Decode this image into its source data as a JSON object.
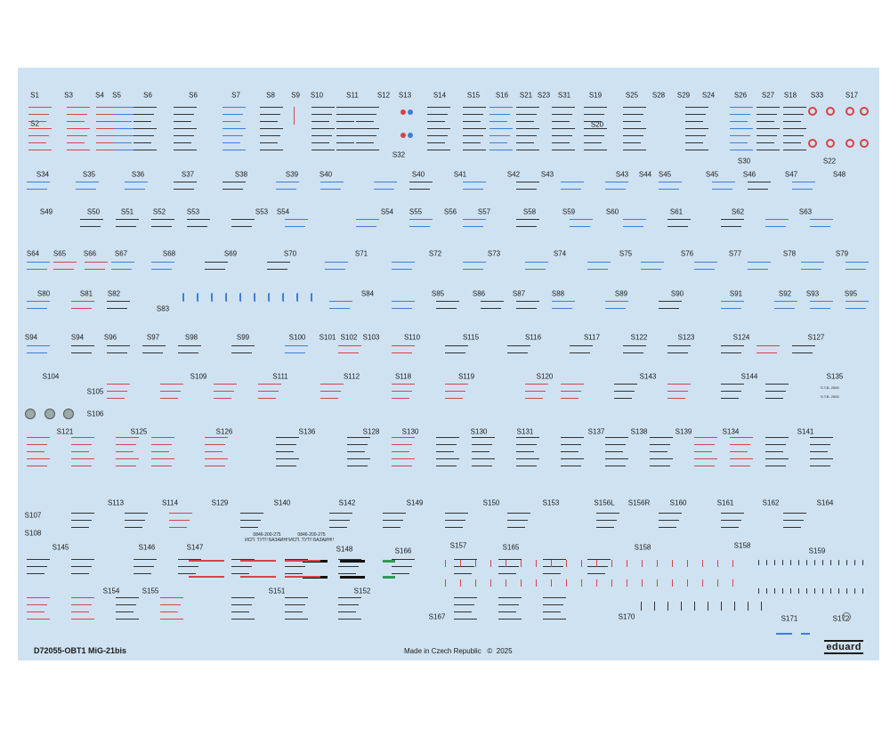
{
  "sheet": {
    "colors": {
      "background": "#cfe2f1",
      "red": "#d8424a",
      "blue": "#3f7ed6",
      "dark": "#333333",
      "green": "#2f9a57",
      "black": "#111111"
    },
    "labels": [
      "S1",
      "S3",
      "S4",
      "S5",
      "S6",
      "S6",
      "S7",
      "S8",
      "S9",
      "S10",
      "S11",
      "S12",
      "S13",
      "S14",
      "S15",
      "S16",
      "S21",
      "S23",
      "S31",
      "S19",
      "S25",
      "S28",
      "S29",
      "S24",
      "S26",
      "S27",
      "S18",
      "S33",
      "S17",
      "S2",
      "S20",
      "S32",
      "S30",
      "S22",
      "S34",
      "S35",
      "S36",
      "S37",
      "S38",
      "S39",
      "S40",
      "S40",
      "S41",
      "S42",
      "S43",
      "S43",
      "S44",
      "S45",
      "S45",
      "S46",
      "S47",
      "S48",
      "S49",
      "S50",
      "S51",
      "S52",
      "S53",
      "S53",
      "S54",
      "S54",
      "S55",
      "S56",
      "S57",
      "S58",
      "S59",
      "S60",
      "S61",
      "S62",
      "S63",
      "S64",
      "S65",
      "S66",
      "S67",
      "S68",
      "S69",
      "S70",
      "S71",
      "S72",
      "S73",
      "S74",
      "S75",
      "S76",
      "S77",
      "S78",
      "S79",
      "S80",
      "S81",
      "S82",
      "S84",
      "S85",
      "S86",
      "S87",
      "S88",
      "S89",
      "S90",
      "S91",
      "S92",
      "S93",
      "S95",
      "S83",
      "S94",
      "S94",
      "S96",
      "S97",
      "S98",
      "S99",
      "S100",
      "S101",
      "S102",
      "S103",
      "S110",
      "S115",
      "S116",
      "S117",
      "S122",
      "S123",
      "S124",
      "S127",
      "S104",
      "S109",
      "S111",
      "S112",
      "S118",
      "S119",
      "S120",
      "S143",
      "S144",
      "S135",
      "S105",
      "S106",
      "S121",
      "S125",
      "S126",
      "S136",
      "S128",
      "S130",
      "S130",
      "S131",
      "S137",
      "S138",
      "S139",
      "S134",
      "S141",
      "S113",
      "S114",
      "S129",
      "S140",
      "S142",
      "S149",
      "S150",
      "S153",
      "S156L",
      "S156R",
      "S160",
      "S161",
      "S162",
      "S164",
      "S107",
      "S108",
      "S145",
      "S146",
      "S147",
      "S148",
      "S166",
      "S157",
      "S165",
      "S158",
      "S158",
      "S159",
      "S154",
      "S155",
      "S151",
      "S152",
      "S167",
      "S170",
      "S171",
      "S172"
    ],
    "small_text": {
      "serial_a": "0846-200-275",
      "serial_b": "0846-200-275",
      "serial_a2": "ИСП. ТУТ!! БАЗАИН!!",
      "serial_b2": "ИСП. ТУТ!! БАЗАИН!!",
      "stencil_1": "S.T.B. 2000",
      "stencil_2": "S.T.B. 2000"
    }
  },
  "footer": {
    "code": "D72055-OBT1 MiG-21bis",
    "made_in": "Made in Czech Republic",
    "copyright_symbol": "©",
    "year": "2025",
    "brand": "eduard"
  }
}
